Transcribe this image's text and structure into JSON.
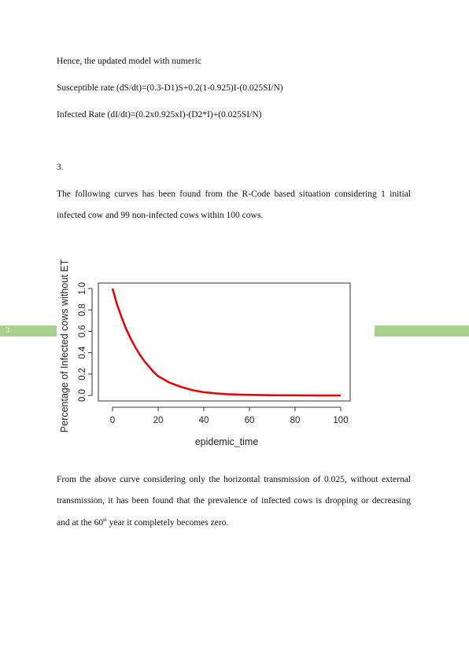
{
  "paragraphs": {
    "p1": "Hence, the updated model with numeric",
    "p2": "Susceptible rate (dS/dt)=(0.3-D1)S+0.2(1-0.925)I-(0.025SI/N)",
    "p3": "Infected Rate (dI/dt)=(0.2x0.925xI)-(D2*I)+(0.025SI/N)",
    "section": "3.",
    "p4_line1": "The following curves has been found from the R-Code based situation considering 1 initial",
    "p4_line2": "infected cow and 99 non-infected cows within 100 cows.",
    "p5_line1": "From the above curve considering only the horizontal transmission of 0.025, without external",
    "p5_line2": "transmission, it has been found that the prevalence of infected cows is dropping or decreasing",
    "p5_line3_pre": "and at the 60",
    "p5_line3_sup": "th",
    "p5_line3_post": " year it completely becomes zero."
  },
  "page_number": "3",
  "colors": {
    "band": "#a9d18e",
    "curve": "#e00000"
  },
  "chart_data": {
    "type": "line",
    "xlabel": "epidemic_time",
    "ylabel": "Percentage of Infected cows without ET",
    "xlim": [
      0,
      100
    ],
    "ylim": [
      0,
      1.0
    ],
    "x_ticks": [
      "0",
      "20",
      "40",
      "60",
      "80",
      "100"
    ],
    "y_ticks": [
      "0.0",
      "0.2",
      "0.4",
      "0.6",
      "0.8",
      "1.0"
    ],
    "grid": false,
    "series": [
      {
        "x": [
          0,
          2,
          4,
          6,
          8,
          10,
          12,
          14,
          16,
          18,
          20,
          25,
          30,
          35,
          40,
          45,
          50,
          55,
          60,
          70,
          80,
          90,
          100
        ],
        "y": [
          1.0,
          0.85,
          0.73,
          0.62,
          0.53,
          0.45,
          0.38,
          0.32,
          0.27,
          0.22,
          0.18,
          0.12,
          0.08,
          0.05,
          0.03,
          0.02,
          0.012,
          0.008,
          0.005,
          0.002,
          0.001,
          0.0,
          0.0
        ]
      }
    ]
  }
}
